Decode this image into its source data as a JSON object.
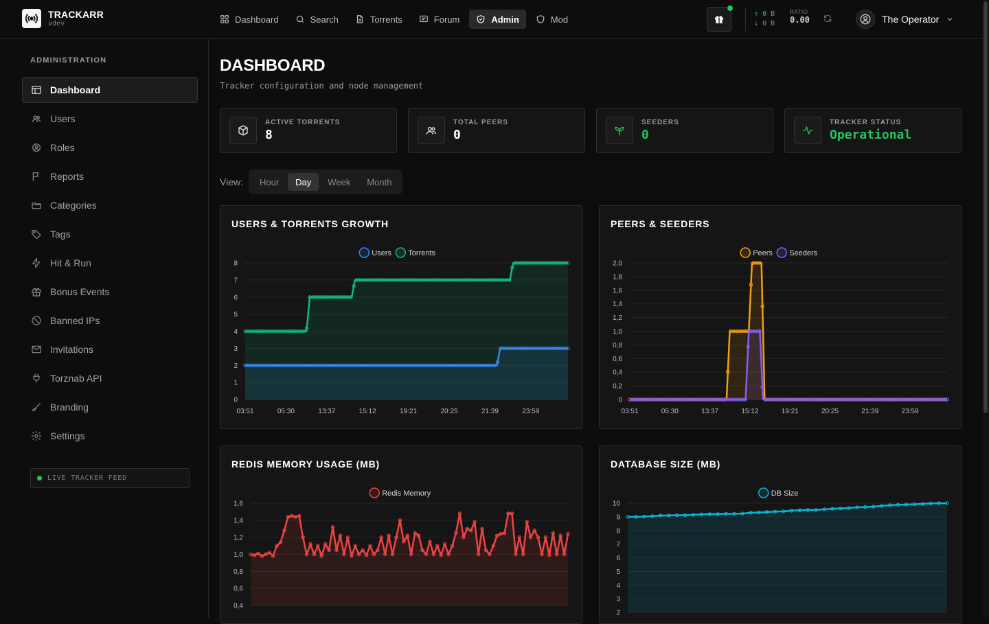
{
  "brand": {
    "name": "TRACKARR",
    "sub": "vdev"
  },
  "nav": [
    {
      "label": "Dashboard",
      "icon": "grid-icon"
    },
    {
      "label": "Search",
      "icon": "search-icon"
    },
    {
      "label": "Torrents",
      "icon": "file-icon"
    },
    {
      "label": "Forum",
      "icon": "message-icon"
    },
    {
      "label": "Admin",
      "icon": "shield-icon",
      "active": true
    },
    {
      "label": "Mod",
      "icon": "shield-icon"
    }
  ],
  "header": {
    "upload": "0 B",
    "download": "0 B",
    "ratio_label": "RATIO",
    "ratio": "0.00",
    "user": "The Operator"
  },
  "sidebar": {
    "heading": "ADMINISTRATION",
    "items": [
      {
        "label": "Dashboard",
        "icon": "layout-icon",
        "active": true
      },
      {
        "label": "Users",
        "icon": "users-icon"
      },
      {
        "label": "Roles",
        "icon": "roles-icon"
      },
      {
        "label": "Reports",
        "icon": "flag-icon"
      },
      {
        "label": "Categories",
        "icon": "folder-icon"
      },
      {
        "label": "Tags",
        "icon": "tag-icon"
      },
      {
        "label": "Hit & Run",
        "icon": "bolt-icon"
      },
      {
        "label": "Bonus Events",
        "icon": "gift-icon"
      },
      {
        "label": "Banned IPs",
        "icon": "ban-icon"
      },
      {
        "label": "Invitations",
        "icon": "mail-icon"
      },
      {
        "label": "Torznab API",
        "icon": "plug-icon"
      },
      {
        "label": "Branding",
        "icon": "brush-icon"
      },
      {
        "label": "Settings",
        "icon": "gear-icon"
      }
    ],
    "live_feed": "LIVE TRACKER FEED"
  },
  "page": {
    "title": "DASHBOARD",
    "subtitle": "Tracker configuration and node management"
  },
  "stats": [
    {
      "label": "ACTIVE TORRENTS",
      "value": "8",
      "icon": "box-icon"
    },
    {
      "label": "TOTAL PEERS",
      "value": "0",
      "icon": "users-icon"
    },
    {
      "label": "SEEDERS",
      "value": "0",
      "icon": "sprout-icon"
    },
    {
      "label": "TRACKER STATUS",
      "value": "Operational",
      "icon": "activity-icon"
    }
  ],
  "view": {
    "label": "View:",
    "tabs": [
      "Hour",
      "Day",
      "Week",
      "Month"
    ],
    "selected": "Day"
  },
  "colors": {
    "users": "#3b82f6",
    "torrents": "#10b981",
    "peers": "#f59e0b",
    "seeders": "#8b5cf6",
    "redis": "#ef4444",
    "db": "#06b6d4"
  },
  "chart_data": [
    {
      "type": "line",
      "title": "USERS & TORRENTS GROWTH",
      "xticks": [
        "03:51",
        "05:30",
        "13:37",
        "15:12",
        "19:21",
        "20:25",
        "21:39",
        "23:59"
      ],
      "ylim": [
        0,
        8
      ],
      "yticks": [
        "0",
        "1",
        "2",
        "3",
        "4",
        "5",
        "6",
        "7",
        "8"
      ],
      "series": [
        {
          "name": "Users",
          "steps": [
            [
              0,
              2
            ],
            [
              0.78,
              2
            ],
            [
              0.79,
              3
            ],
            [
              1,
              3
            ]
          ]
        },
        {
          "name": "Torrents",
          "steps": [
            [
              0,
              4
            ],
            [
              0.19,
              4
            ],
            [
              0.2,
              6
            ],
            [
              0.33,
              6
            ],
            [
              0.34,
              7
            ],
            [
              0.82,
              7
            ],
            [
              0.83,
              8
            ],
            [
              1,
              8
            ]
          ]
        }
      ],
      "legend": "top-center"
    },
    {
      "type": "line",
      "title": "PEERS & SEEDERS",
      "xticks": [
        "03:51",
        "05:30",
        "13:37",
        "15:12",
        "19:21",
        "20:25",
        "21:39",
        "23:59"
      ],
      "ylim": [
        0,
        2
      ],
      "yticks": [
        "0",
        "0,2",
        "0,4",
        "0,6",
        "0,8",
        "1,0",
        "1,2",
        "1,4",
        "1,6",
        "1,8",
        "2,0"
      ],
      "series": [
        {
          "name": "Peers",
          "steps": [
            [
              0,
              0
            ],
            [
              0.305,
              0
            ],
            [
              0.315,
              1
            ],
            [
              0.375,
              1
            ],
            [
              0.385,
              2
            ],
            [
              0.415,
              2
            ],
            [
              0.425,
              0
            ],
            [
              1,
              0
            ]
          ]
        },
        {
          "name": "Seeders",
          "steps": [
            [
              0,
              0
            ],
            [
              0.365,
              0
            ],
            [
              0.375,
              1
            ],
            [
              0.41,
              1
            ],
            [
              0.42,
              0
            ],
            [
              1,
              0
            ]
          ]
        }
      ],
      "legend": "top-center"
    },
    {
      "type": "line",
      "title": "REDIS MEMORY USAGE (MB)",
      "ylim": [
        0.4,
        1.6
      ],
      "yticks": [
        "0,4",
        "0,6",
        "0,8",
        "1,0",
        "1,2",
        "1,4",
        "1,6"
      ],
      "series": [
        {
          "name": "Redis Memory",
          "values": [
            1.0,
            0.99,
            1.01,
            0.98,
            1.0,
            1.02,
            0.98,
            1.1,
            1.14,
            1.28,
            1.44,
            1.45,
            1.44,
            1.45,
            1.2,
            1.0,
            1.12,
            1.0,
            1.1,
            0.98,
            1.12,
            1.05,
            1.32,
            1.05,
            1.22,
            1.0,
            1.2,
            0.98,
            1.1,
            1.0,
            1.05,
            0.99,
            1.1,
            1.0,
            1.05,
            1.2,
            1.0,
            1.22,
            1.0,
            1.2,
            1.4,
            1.15,
            1.22,
            1.0,
            1.25,
            1.22,
            1.05,
            1.0,
            1.15,
            1.0,
            1.1,
            0.99,
            1.12,
            1.0,
            1.1,
            1.25,
            1.48,
            1.2,
            1.3,
            1.28,
            1.38,
            1.0,
            1.3,
            1.05,
            1.0,
            1.1,
            1.22,
            1.24,
            1.25,
            1.48,
            1.48,
            1.0,
            1.2,
            1.0,
            1.38,
            1.2,
            1.28,
            1.2,
            1.0,
            1.2,
            0.99,
            1.25,
            1.0,
            1.22,
            1.0,
            1.24
          ]
        }
      ],
      "legend": "top-center"
    },
    {
      "type": "line",
      "title": "DATABASE SIZE (MB)",
      "ylim": [
        2,
        10
      ],
      "yticks": [
        "2",
        "3",
        "4",
        "5",
        "6",
        "7",
        "8",
        "9",
        "10"
      ],
      "series": [
        {
          "name": "DB Size",
          "values": [
            9.0,
            9.0,
            9.02,
            9.05,
            9.1,
            9.1,
            9.12,
            9.12,
            9.15,
            9.18,
            9.2,
            9.2,
            9.22,
            9.22,
            9.24,
            9.3,
            9.32,
            9.35,
            9.38,
            9.4,
            9.45,
            9.48,
            9.5,
            9.5,
            9.55,
            9.6,
            9.62,
            9.65,
            9.7,
            9.72,
            9.75,
            9.8,
            9.85,
            9.88,
            9.9,
            9.92,
            9.95,
            9.98,
            10.0,
            10.0
          ]
        }
      ],
      "legend": "top-center"
    }
  ]
}
